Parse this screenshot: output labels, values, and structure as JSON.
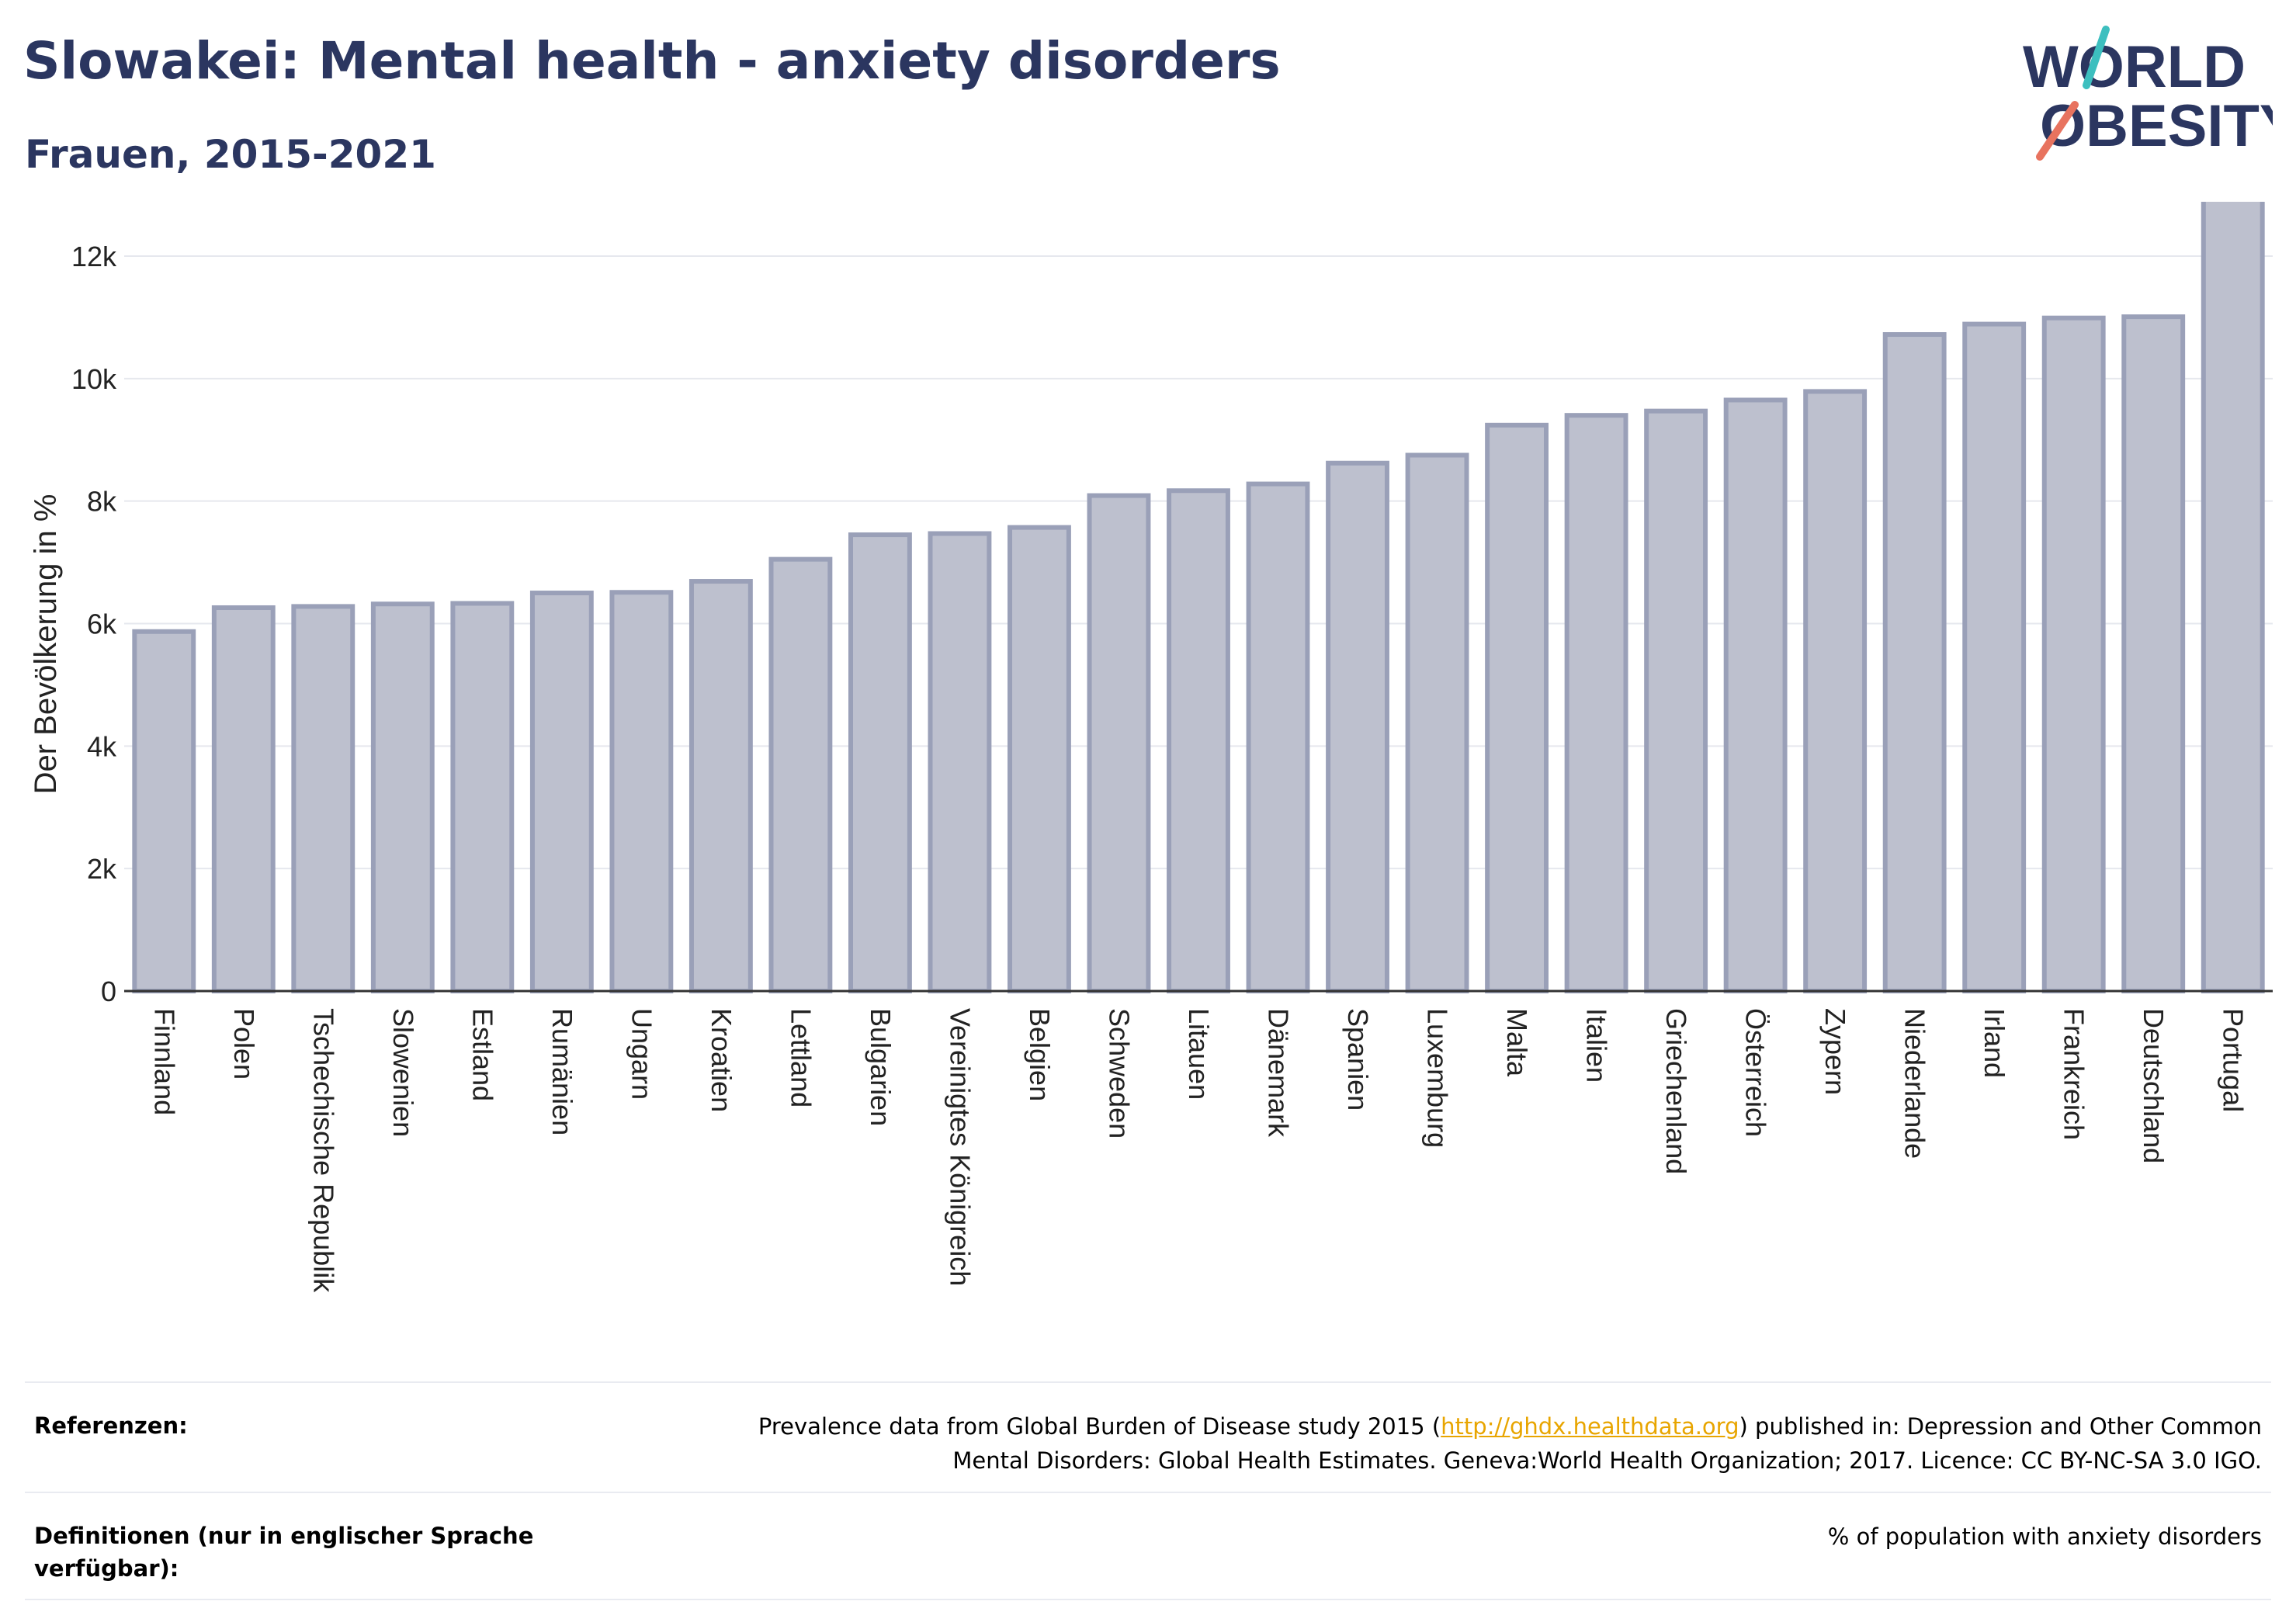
{
  "header": {
    "title": "Slowakei: Mental health - anxiety disorders",
    "subtitle": "Frauen, 2015-2021"
  },
  "logo": {
    "line1": "WORLD",
    "line2": "OBESITY"
  },
  "colors": {
    "bar_fill": "#bdc0ce",
    "bar_stroke": "#9aa0b8",
    "grid": "#e6e8ee",
    "axis": "#333333"
  },
  "chart_data": {
    "type": "bar",
    "ylabel": "Der Bevölkerung in %",
    "ylim": [
      0,
      13000
    ],
    "yticks": [
      {
        "value": 0,
        "label": "0"
      },
      {
        "value": 2000,
        "label": "2k"
      },
      {
        "value": 4000,
        "label": "4k"
      },
      {
        "value": 6000,
        "label": "6k"
      },
      {
        "value": 8000,
        "label": "8k"
      },
      {
        "value": 10000,
        "label": "10k"
      },
      {
        "value": 12000,
        "label": "12k"
      }
    ],
    "grid": true,
    "categories": [
      "Finnland",
      "Polen",
      "Tschechische Republik",
      "Slowenien",
      "Estland",
      "Rumänien",
      "Ungarn",
      "Kroatien",
      "Lettland",
      "Bulgarien",
      "Vereinigtes Königreich",
      "Belgien",
      "Schweden",
      "Litauen",
      "Dänemark",
      "Spanien",
      "Luxemburg",
      "Malta",
      "Italien",
      "Griechenland",
      "Österreich",
      "Zypern",
      "Niederlande",
      "Irland",
      "Frankreich",
      "Deutschland",
      "Portugal"
    ],
    "values": [
      5870,
      6260,
      6280,
      6320,
      6330,
      6500,
      6510,
      6690,
      7050,
      7450,
      7470,
      7570,
      8090,
      8170,
      8280,
      8620,
      8750,
      9240,
      9400,
      9470,
      9650,
      9790,
      10720,
      10890,
      10990,
      11010,
      12950
    ]
  },
  "footer": {
    "references_label": "Referenzen:",
    "references_prefix": "Prevalence data from Global Burden of Disease study 2015 (",
    "references_link": "http://ghdx.healthdata.org",
    "references_suffix": ") published in: Depression and Other Common",
    "references_line2": "Mental Disorders: Global Health Estimates. Geneva:World Health Organization; 2017. Licence: CC BY-NC-SA 3.0 IGO.",
    "definitions_label": "Definitionen (nur in englischer Sprache verfügbar):",
    "definitions_text": "% of population with anxiety disorders"
  }
}
